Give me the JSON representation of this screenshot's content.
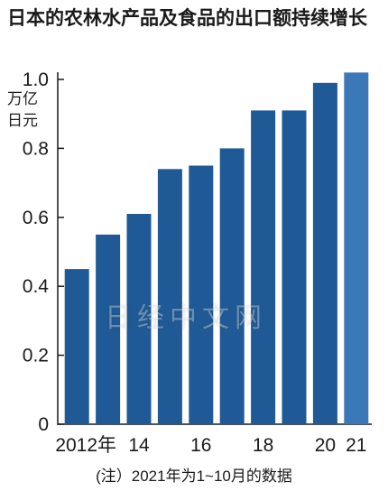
{
  "title": "日本的农林水产品及食品的出口额持续增长",
  "unit_line1": "万亿",
  "unit_line2": "日元",
  "note": "(注）2021年为1~10月的数据",
  "watermark": "日经中文网",
  "colors": {
    "bar": "#1f5a96",
    "bar_last": "#3a78b8",
    "axis": "#1a1a1a"
  },
  "chart_data": {
    "type": "bar",
    "title": "日本的农林水产品及食品的出口额持续增长",
    "ylabel": "万亿日元",
    "xlabel": "",
    "categories": [
      "2012",
      "2013",
      "2014",
      "2015",
      "2016",
      "2017",
      "2018",
      "2019",
      "2020",
      "2021"
    ],
    "x_tick_labels": [
      "2012年",
      "",
      "14",
      "",
      "16",
      "",
      "18",
      "",
      "20",
      "21"
    ],
    "values": [
      0.45,
      0.55,
      0.61,
      0.74,
      0.75,
      0.8,
      0.91,
      0.91,
      0.99,
      1.02
    ],
    "y_ticks": [
      0,
      0.2,
      0.4,
      0.6,
      0.8,
      1.0
    ],
    "y_tick_labels": [
      "0",
      "0.2",
      "0.4",
      "0.6",
      "0.8",
      "1.0"
    ],
    "ylim": [
      0,
      1.0
    ],
    "grid": false,
    "legend": "none"
  }
}
